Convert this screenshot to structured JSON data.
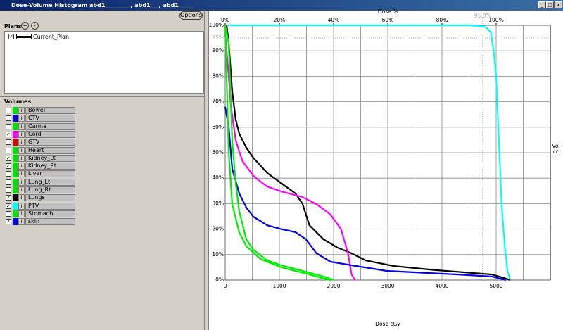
{
  "window": {
    "title": "Dose-Volume Histogram abd1_________, abd1___, abd1_____"
  },
  "options_button": "Options",
  "plans": {
    "label": "Plans",
    "add": "+",
    "remove": "-",
    "items": [
      {
        "name": "Current_Plan",
        "checked": true
      }
    ]
  },
  "volumes": {
    "label": "Volumes",
    "info": "i",
    "items": [
      {
        "name": "Bowel",
        "color": "#00e000",
        "checked": false
      },
      {
        "name": "CTV",
        "color": "#0000e0",
        "checked": false
      },
      {
        "name": "Carina",
        "color": "#00e000",
        "checked": false
      },
      {
        "name": "Cord",
        "color": "#ff00ff",
        "checked": true
      },
      {
        "name": "GTV",
        "color": "#e00000",
        "checked": false
      },
      {
        "name": "Heart",
        "color": "#00e000",
        "checked": false
      },
      {
        "name": "Kidney_Lt",
        "color": "#00e000",
        "checked": true
      },
      {
        "name": "Kidney_Rt",
        "color": "#00e000",
        "checked": true
      },
      {
        "name": "Liver",
        "color": "#00e000",
        "checked": false
      },
      {
        "name": "Lung_Lt",
        "color": "#00e000",
        "checked": false
      },
      {
        "name": "Lung_Rt",
        "color": "#00e000",
        "checked": false
      },
      {
        "name": "Lungs",
        "color": "#000000",
        "checked": true
      },
      {
        "name": "PTV",
        "color": "#00ffff",
        "checked": true
      },
      {
        "name": "Stomach",
        "color": "#00e000",
        "checked": false
      },
      {
        "name": "skin",
        "color": "#0000e0",
        "checked": true
      }
    ]
  },
  "chart_data": {
    "type": "line",
    "x_label_top": "Dose %",
    "x_label": "Dose cGy",
    "y_label": [
      "Vol",
      "cc"
    ],
    "xlim": [
      0,
      6000
    ],
    "ylim": [
      0,
      100
    ],
    "xticks": [
      0,
      1000,
      2000,
      3000,
      4000,
      5000
    ],
    "xticks_top": [
      {
        "value": 0,
        "label": "0%"
      },
      {
        "value": 1000,
        "label": "20%"
      },
      {
        "value": 2000,
        "label": "40%"
      },
      {
        "value": 3000,
        "label": "60%"
      },
      {
        "value": 4000,
        "label": "80%"
      },
      {
        "value": 5000,
        "label": "100%"
      }
    ],
    "xgrid": [
      500,
      1500,
      2500,
      3500,
      4500,
      5500
    ],
    "yticks": [
      {
        "value": 0,
        "label": "0%"
      },
      {
        "value": 10,
        "label": "10%"
      },
      {
        "value": 20,
        "label": "20%"
      },
      {
        "value": 30,
        "label": "30%"
      },
      {
        "value": 40,
        "label": "40%"
      },
      {
        "value": 50,
        "label": "50%"
      },
      {
        "value": 60,
        "label": "60%"
      },
      {
        "value": 70,
        "label": "70%"
      },
      {
        "value": 80,
        "label": "80%"
      },
      {
        "value": 90,
        "label": "90%"
      },
      {
        "value": 100,
        "label": "100%"
      }
    ],
    "ref_y": {
      "value": 95,
      "label": "95%"
    },
    "ref_x": {
      "value": 4750,
      "label": "95.0%"
    },
    "grid": true,
    "series": [
      {
        "color": "#00ffff",
        "x": [
          0,
          4500,
          4790,
          4900,
          4950,
          5000,
          5050,
          5100,
          5160,
          5210,
          5260
        ],
        "values": [
          100,
          100,
          99.5,
          97.5,
          90.5,
          80,
          55,
          30,
          13,
          3.5,
          0
        ]
      },
      {
        "color": "#000000",
        "x": [
          0,
          26,
          65,
          130,
          194,
          259,
          389,
          518,
          777,
          1036,
          1295,
          1425,
          1554,
          1813,
          2073,
          2332,
          2591,
          3109,
          3886,
          4922,
          5181,
          5259
        ],
        "values": [
          100,
          100,
          93,
          74,
          63,
          57.5,
          52,
          48,
          42,
          38,
          34,
          30,
          21.5,
          16,
          12.7,
          10.5,
          7.7,
          5.5,
          3.9,
          2.2,
          0.6,
          0
        ]
      },
      {
        "color": "#ff00ff",
        "x": [
          0,
          65,
          104,
          194,
          259,
          324,
          518,
          648,
          777,
          1036,
          1425,
          1684,
          1943,
          2137,
          2267,
          2332,
          2396
        ],
        "values": [
          97,
          80,
          68.5,
          55,
          50.5,
          46.5,
          41,
          38.7,
          36.7,
          34.8,
          32.6,
          29.8,
          25.7,
          20,
          10.5,
          2.2,
          0
        ]
      },
      {
        "color": "#0000e0",
        "x": [
          0,
          65,
          130,
          259,
          389,
          518,
          777,
          1036,
          1295,
          1490,
          1684,
          1943,
          2332,
          2979,
          4275,
          4922,
          5181
        ],
        "values": [
          68,
          60,
          43.6,
          34,
          28.5,
          24.9,
          21.5,
          20,
          18.8,
          16,
          10.5,
          7.2,
          5.8,
          3.6,
          2.2,
          1.4,
          0
        ]
      },
      {
        "color": "#00ee00",
        "x": [
          0,
          65,
          130,
          194,
          259,
          389,
          518,
          777,
          1036,
          1425,
          1813,
          2008
        ],
        "values": [
          100,
          93,
          54.7,
          38,
          27,
          16,
          11.9,
          7.7,
          5.8,
          3.6,
          1.4,
          0
        ]
      },
      {
        "color": "#00ee00",
        "x": [
          0,
          65,
          130,
          259,
          389,
          648,
          1036,
          1554,
          1813,
          1943
        ],
        "values": [
          100,
          50,
          29.8,
          18.8,
          13.3,
          8.3,
          5,
          2.2,
          0.6,
          0
        ]
      }
    ]
  }
}
